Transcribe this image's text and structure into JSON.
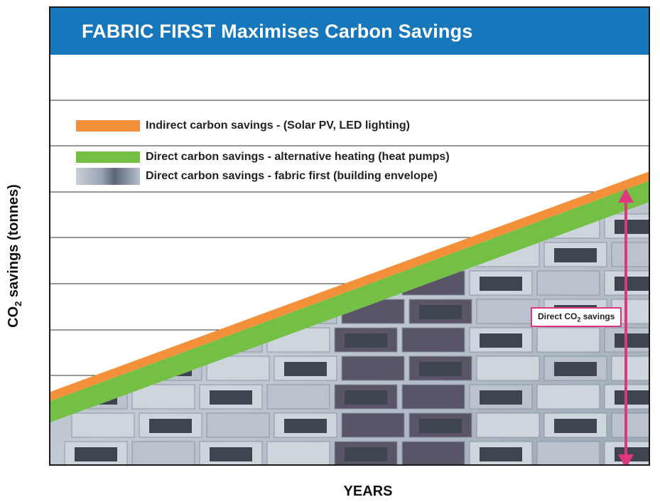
{
  "chart_data": {
    "type": "area",
    "title": "FABRIC FIRST Maximises Carbon Savings",
    "xlabel": "YEARS",
    "ylabel": "CO2 savings (tonnes)",
    "legend": [
      {
        "label": "Indirect carbon savings - (Solar PV, LED lighting)",
        "color": "#f4903a"
      },
      {
        "label": "Direct carbon savings - alternative heating (heat pumps)",
        "color": "#73c044"
      },
      {
        "label": "Direct carbon savings - fabric first (building envelope)",
        "color": "#8b96a6"
      }
    ],
    "annotation": {
      "text": "Direct CO2 savings",
      "color": "#e0357f"
    },
    "colors": {
      "title_bar": "#1777bd",
      "indirect": "#f4903a",
      "heating": "#73c044",
      "fabric": "#8b96a6",
      "arrow": "#e0357f"
    },
    "grid": true,
    "legend_placement": "top-left"
  }
}
